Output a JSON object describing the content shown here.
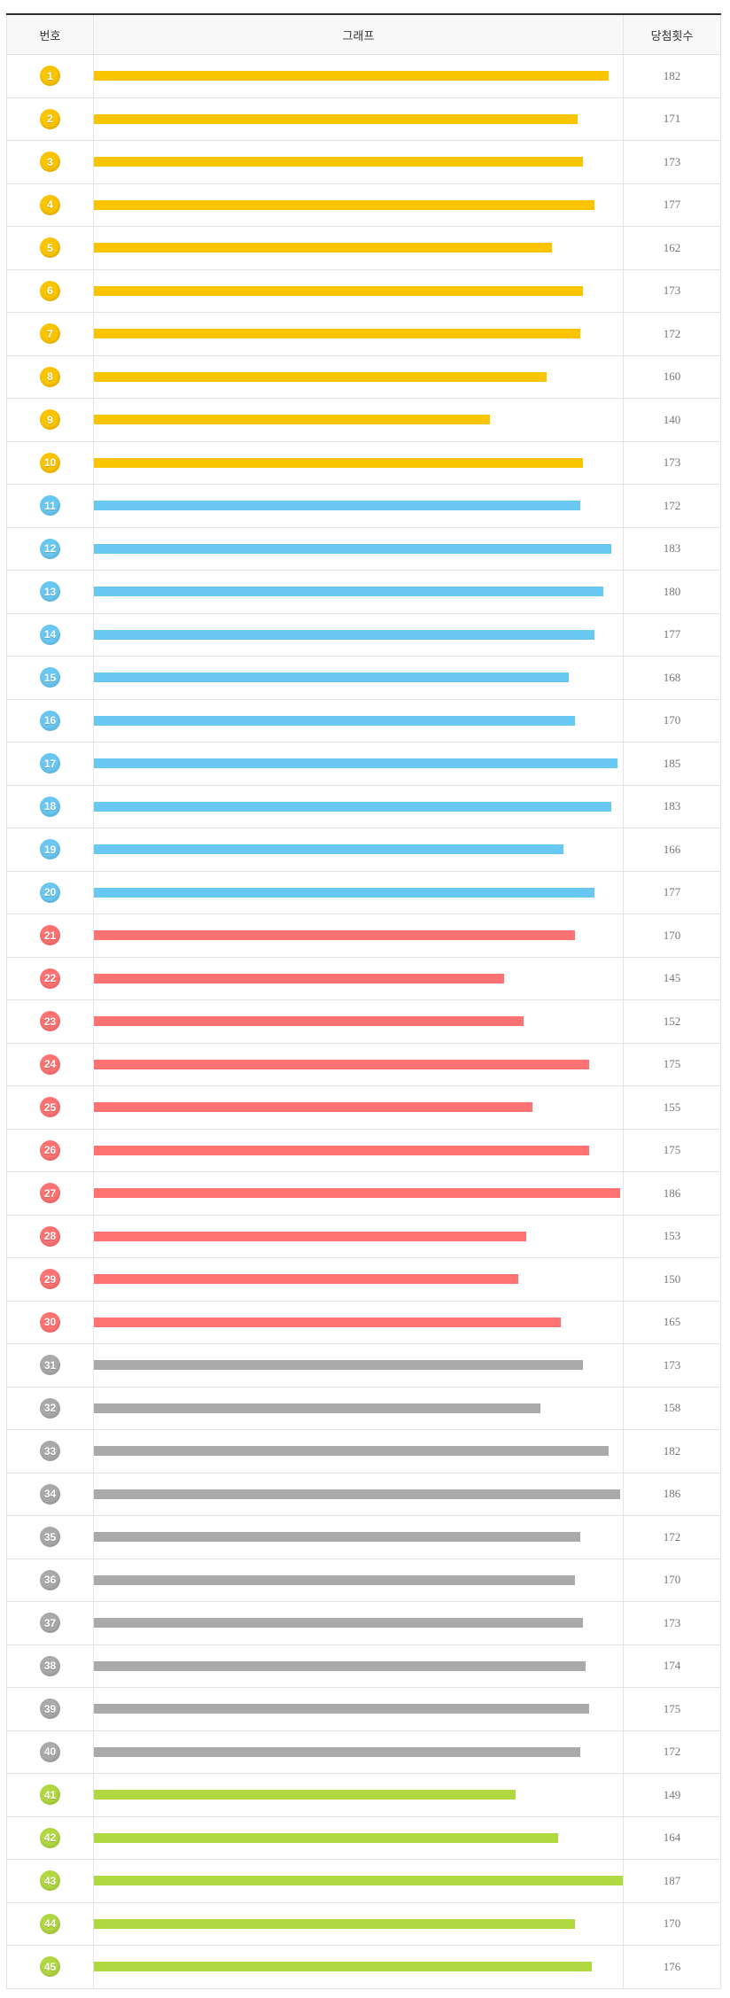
{
  "header": {
    "col_number": "번호",
    "col_graph": "그래프",
    "col_count": "당첨횟수"
  },
  "colors": {
    "group_1_10": "#fbc400",
    "group_11_20": "#69c8f2",
    "group_21_30": "#ff7272",
    "group_31_40": "#aaaaaa",
    "group_41_45": "#b0d840",
    "table_top_border": "#2d2d2d",
    "header_background": "#f8f8f8",
    "row_border": "#e3e3e3",
    "count_text": "#777777"
  },
  "chart_data": {
    "type": "bar",
    "orientation": "horizontal",
    "title": "",
    "xlabel": "",
    "ylabel": "",
    "columns": [
      "번호",
      "그래프",
      "당첨횟수"
    ],
    "categories": [
      1,
      2,
      3,
      4,
      5,
      6,
      7,
      8,
      9,
      10,
      11,
      12,
      13,
      14,
      15,
      16,
      17,
      18,
      19,
      20,
      21,
      22,
      23,
      24,
      25,
      26,
      27,
      28,
      29,
      30,
      31,
      32,
      33,
      34,
      35,
      36,
      37,
      38,
      39,
      40,
      41,
      42,
      43,
      44,
      45
    ],
    "values": [
      182,
      171,
      173,
      177,
      162,
      173,
      172,
      160,
      140,
      173,
      172,
      183,
      180,
      177,
      168,
      170,
      185,
      183,
      166,
      177,
      170,
      145,
      152,
      175,
      155,
      175,
      186,
      153,
      150,
      165,
      173,
      158,
      182,
      186,
      172,
      170,
      173,
      174,
      175,
      172,
      149,
      164,
      187,
      170,
      176
    ],
    "xlim": [
      0,
      187
    ],
    "grid": false,
    "legend": false,
    "color_groups": [
      {
        "from": 1,
        "to": 10,
        "color": "#fbc400"
      },
      {
        "from": 11,
        "to": 20,
        "color": "#69c8f2"
      },
      {
        "from": 21,
        "to": 30,
        "color": "#ff7272"
      },
      {
        "from": 31,
        "to": 40,
        "color": "#aaaaaa"
      },
      {
        "from": 41,
        "to": 45,
        "color": "#b0d840"
      }
    ]
  }
}
